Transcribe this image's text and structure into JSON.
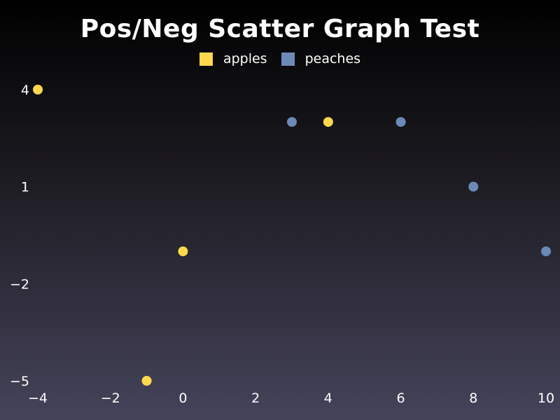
{
  "chart_data": {
    "type": "scatter",
    "title": "Pos/Neg Scatter Graph Test",
    "xlabel": "",
    "ylabel": "",
    "xlim": [
      -4,
      10
    ],
    "ylim": [
      -5,
      4
    ],
    "x_ticks": [
      -4,
      -2,
      0,
      2,
      4,
      6,
      8,
      10
    ],
    "y_ticks": [
      4,
      1,
      -2,
      -5
    ],
    "x_tick_labels": [
      "−4",
      "−2",
      "0",
      "2",
      "4",
      "6",
      "8",
      "10"
    ],
    "y_tick_labels": [
      "4",
      "1",
      "−2",
      "−5"
    ],
    "grid": false,
    "legend_position": "top-center",
    "series": [
      {
        "name": "apples",
        "color": "#ffd84d",
        "points": [
          {
            "x": -4,
            "y": 4
          },
          {
            "x": 4,
            "y": 3
          },
          {
            "x": 0,
            "y": -1
          },
          {
            "x": -1,
            "y": -5
          }
        ]
      },
      {
        "name": "peaches",
        "color": "#6b8ab8",
        "points": [
          {
            "x": 3,
            "y": 3
          },
          {
            "x": 6,
            "y": 3
          },
          {
            "x": 8,
            "y": 1
          },
          {
            "x": 10,
            "y": -1
          }
        ]
      }
    ]
  }
}
